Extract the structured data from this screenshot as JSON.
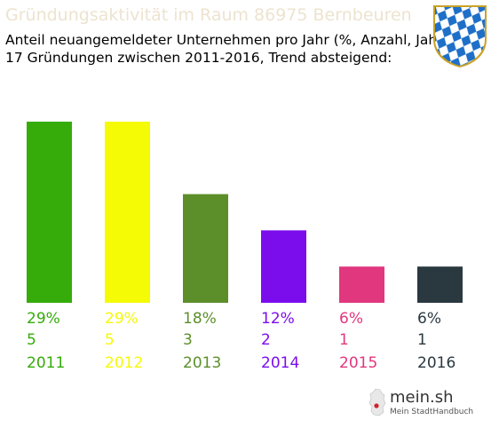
{
  "header": {
    "title": "Gründungsaktivität im Raum 86975 Bernbeuren",
    "subtitle_line1": "Anteil neuangemeldeter Unternehmen pro Jahr (%, Anzahl, Jahr)",
    "subtitle_line2": "17 Gründungen zwischen 2011-2016, Trend absteigend:"
  },
  "crest": {
    "icon": "bavaria-coat-of-arms-icon",
    "colors": {
      "blue": "#1e6fc8",
      "white": "#ffffff",
      "gold": "#c9a227"
    }
  },
  "chart_data": {
    "type": "bar",
    "categories": [
      "2011",
      "2012",
      "2013",
      "2014",
      "2015",
      "2016"
    ],
    "percent_labels": [
      "29%",
      "29%",
      "18%",
      "12%",
      "6%",
      "6%"
    ],
    "values": [
      5,
      5,
      3,
      2,
      1,
      1
    ],
    "count_labels": [
      "5",
      "5",
      "3",
      "2",
      "1",
      "1"
    ],
    "colors": [
      "#35ac0a",
      "#f5fa05",
      "#5c8f2a",
      "#7b0ded",
      "#e1377e",
      "#2a3840"
    ],
    "ylim": [
      0,
      5
    ],
    "grid": false,
    "legend": "none"
  },
  "footer_logo": {
    "name": "mein.sh",
    "tagline": "Mein StadtHandbuch",
    "icon": "germany-map-icon"
  }
}
